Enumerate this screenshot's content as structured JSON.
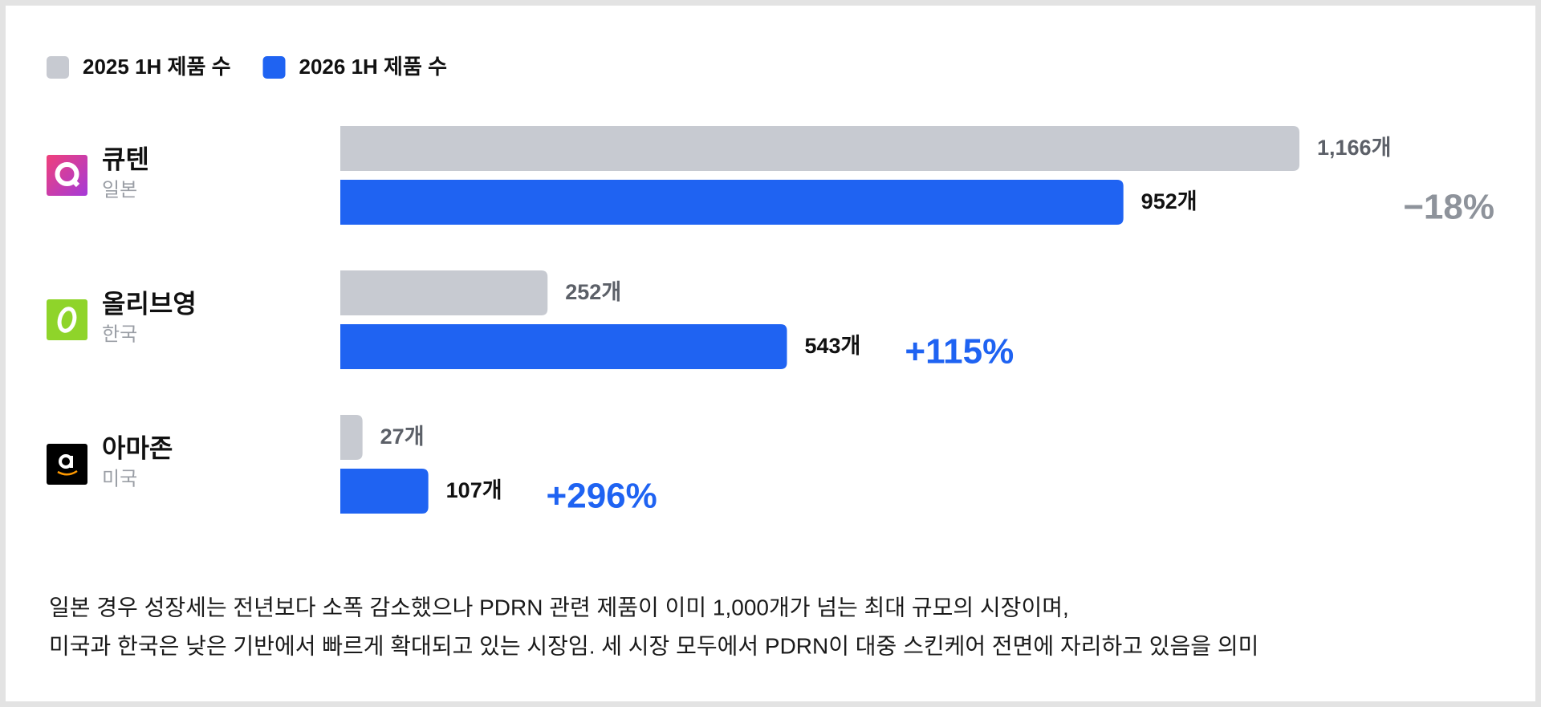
{
  "chart_data": {
    "type": "bar",
    "orientation": "horizontal",
    "legend": "top-left",
    "categories": [
      "큐텐",
      "올리브영",
      "아마존"
    ],
    "category_subtitles": [
      "일본",
      "한국",
      "미국"
    ],
    "series": [
      {
        "name": "2025 1H 제품 수",
        "color": "#c7cad1",
        "values": [
          1166,
          252,
          27
        ],
        "value_labels": [
          "1,166개",
          "252개",
          "27개"
        ]
      },
      {
        "name": "2026 1H 제품 수",
        "color": "#1f63f2",
        "values": [
          952,
          543,
          107
        ],
        "value_labels": [
          "952개",
          "543개",
          "107개"
        ]
      }
    ],
    "change_labels": [
      {
        "value": -18,
        "label": "−18%"
      },
      {
        "value": 115,
        "label": "+115%"
      },
      {
        "value": 296,
        "label": "+296%"
      }
    ],
    "note": [
      "일본 경우 성장세는 전년보다 소폭 감소했으나 PDRN 관련 제품이 이미 1,000개가 넘는 최대 규모의 시장이며,",
      "미국과 한국은 낮은 기반에서 빠르게 확대되고 있는 시장임. 세 시장 모두에서 PDRN이 대중 스킨케어 전면에 자리하고 있음을 의미"
    ]
  }
}
